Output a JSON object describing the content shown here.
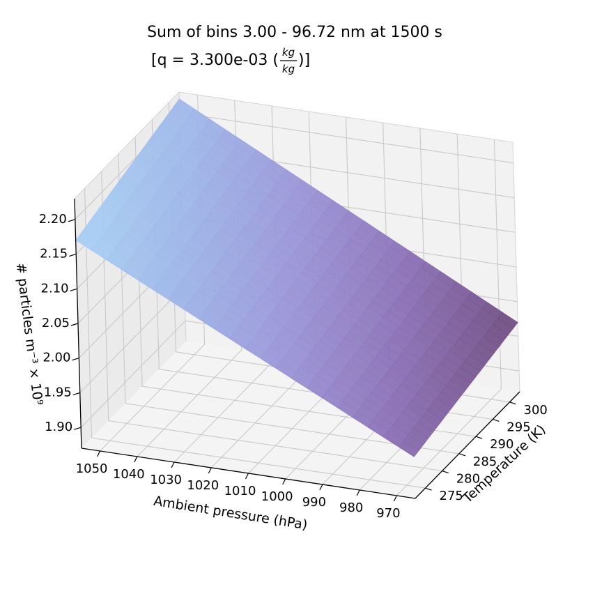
{
  "chart_data": {
    "type": "surface3d",
    "title_line1": "Sum of bins 3.00 - 96.72 nm at 1500 s",
    "title_line2_prefix": "[q = 3.300e-03 (",
    "title_unit_num": "kg",
    "title_unit_den": "kg",
    "title_line2_suffix": ")]",
    "xlabel": "Ambient pressure (hPa)",
    "ylabel": "Temperature (K)",
    "zlabel": "# particles m⁻³ × 10⁹",
    "x_ticks": [
      1050,
      1040,
      1030,
      1020,
      1010,
      1000,
      990,
      980,
      970
    ],
    "y_ticks": [
      275,
      280,
      285,
      290,
      295,
      300
    ],
    "z_ticks": [
      "1.90",
      "1.95",
      "2.00",
      "2.05",
      "2.10",
      "2.15",
      "2.20"
    ],
    "xlim": [
      1055,
      965
    ],
    "ylim": [
      272,
      303
    ],
    "zlim": [
      1.87,
      2.23
    ],
    "grid": true,
    "colormap": [
      "#a9d2f4",
      "#9db4e8",
      "#9a93d6",
      "#8a6fb5",
      "#6f4b7e"
    ],
    "surface_corners": [
      {
        "pressure": 1055,
        "temperature": 303,
        "value": 2.22
      },
      {
        "pressure": 965,
        "temperature": 303,
        "value": 1.97
      },
      {
        "pressure": 1055,
        "temperature": 272,
        "value": 2.17
      },
      {
        "pressure": 965,
        "temperature": 272,
        "value": 1.93
      }
    ]
  }
}
